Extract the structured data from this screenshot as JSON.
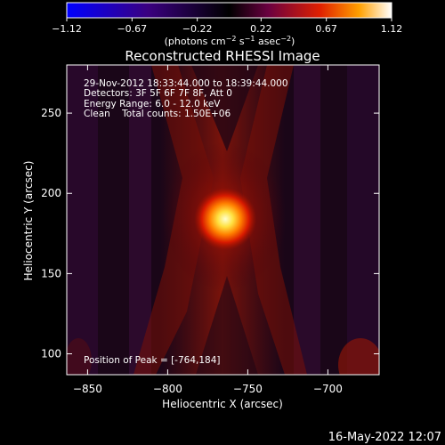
{
  "chart_data": {
    "type": "heatmap",
    "title": "Reconstructed RHESSI Image",
    "xlabel": "Heliocentric X (arcsec)",
    "ylabel": "Heliocentric Y (arcsec)",
    "xlim": [
      -863,
      -668
    ],
    "ylim": [
      87,
      280
    ],
    "x_ticks": [
      -850,
      -800,
      -750,
      -700
    ],
    "y_ticks": [
      100,
      150,
      200,
      250
    ],
    "x_tick_labels": [
      "−850",
      "−800",
      "−750",
      "−700"
    ],
    "y_tick_labels": [
      "100",
      "150",
      "200",
      "250"
    ],
    "colorbar": {
      "range": [
        -1.12,
        1.12
      ],
      "ticks": [
        -1.12,
        -0.67,
        -0.22,
        0.22,
        0.67,
        1.12
      ],
      "tick_labels": [
        "−1.12",
        "−0.67",
        "−0.22",
        "0.22",
        "0.67",
        "1.12"
      ],
      "unit_label": "(photons cm",
      "unit_exp1": "−2",
      "unit_mid": " s",
      "unit_exp2": "−1",
      "unit_end": " asec",
      "unit_exp3": "−2",
      "unit_close": ")"
    },
    "peak": {
      "x": -764,
      "y": 184
    },
    "annotations": [
      "29-Nov-2012 18:33:44.000 to 18:39:44.000",
      "Detectors: 3F 5F 6F 7F 8F, Att 0",
      "Energy Range: 6.0 - 12.0 keV",
      "Clean    Total counts: 1.50E+06"
    ],
    "peak_label": "Position of Peak = [-764,184]",
    "grid": false
  },
  "footer": {
    "timestamp": "16-May-2022 12:07"
  }
}
